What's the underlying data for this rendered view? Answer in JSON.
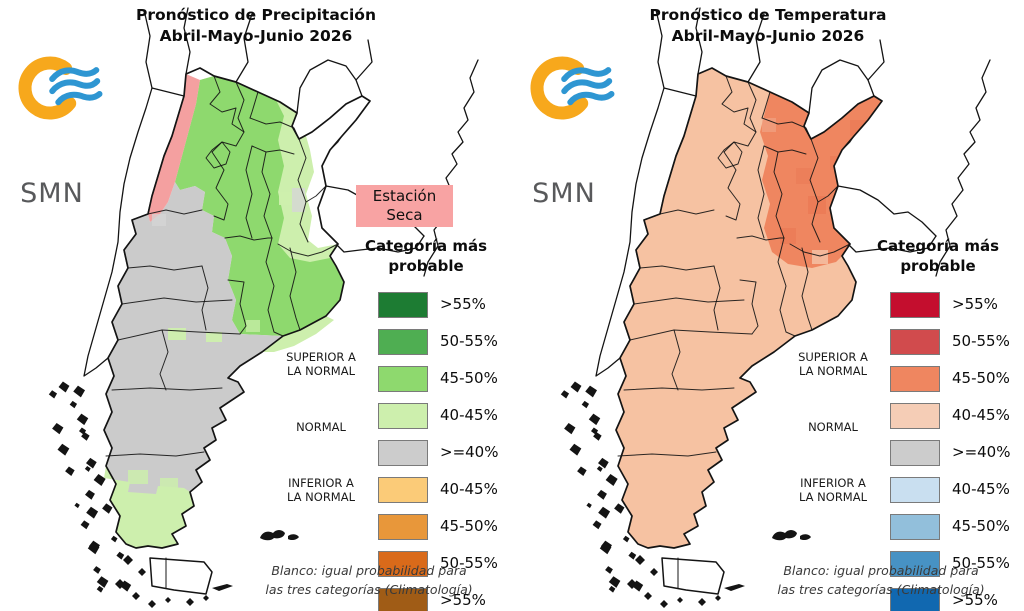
{
  "panels": [
    {
      "title_line1": "Pronóstico de Precipitación",
      "title_line2": "Abril-Mayo-Junio 2026",
      "logo_text": "SMN",
      "dry_label": {
        "line1": "Estación",
        "line2": "Seca",
        "bg": "#f8a3a3"
      },
      "legend": {
        "title_line1": "Categoría más",
        "title_line2": "probable",
        "rows": [
          {
            "range": ">55%",
            "color": "#1d7c33"
          },
          {
            "range": "50-55%",
            "color": "#4fae52"
          },
          {
            "range": "45-50%",
            "color": "#8ed96e"
          },
          {
            "range": "40-45%",
            "color": "#cdefad"
          },
          {
            "range": ">=40%",
            "color": "#cccccc"
          },
          {
            "range": "40-45%",
            "color": "#fbcb78"
          },
          {
            "range": "45-50%",
            "color": "#e8973a"
          },
          {
            "range": "50-55%",
            "color": "#d96a1a"
          },
          {
            "range": ">55%",
            "color": "#a05c16"
          }
        ]
      },
      "footnote_line1": "Blanco: igual probabilidad para",
      "footnote_line2": "las tres categorías (Climatología)",
      "map_colors": {
        "base": "#ffffff",
        "dry_band": "#f4a0a0",
        "cat_45_50": "#8ed96e",
        "cat_40_45": "#cdefad",
        "normal": "#cbcbcb"
      }
    },
    {
      "title_line1": "Pronóstico de Temperatura",
      "title_line2": "Abril-Mayo-Junio 2026",
      "logo_text": "SMN",
      "legend": {
        "title_line1": "Categoría más",
        "title_line2": "probable",
        "rows": [
          {
            "range": ">55%",
            "color": "#c40e2e"
          },
          {
            "range": "50-55%",
            "color": "#d14b4d"
          },
          {
            "range": "45-50%",
            "color": "#ef8660"
          },
          {
            "range": "40-45%",
            "color": "#f5cdb6"
          },
          {
            "range": ">=40%",
            "color": "#cccccc"
          },
          {
            "range": "40-45%",
            "color": "#c9dff0"
          },
          {
            "range": "45-50%",
            "color": "#92bfdb"
          },
          {
            "range": "50-55%",
            "color": "#4792c4"
          },
          {
            "range": ">55%",
            "color": "#1168b0"
          }
        ]
      },
      "footnote_line1": "Blanco: igual probabilidad para",
      "footnote_line2": "las tres categorías (Climatología)",
      "map_colors": {
        "base": "#f6c2a2",
        "cat_45_50": "#ef8660"
      }
    }
  ],
  "legend_groups": {
    "superior": {
      "line1": "SUPERIOR A",
      "line2": "LA NORMAL"
    },
    "normal": {
      "line1": "NORMAL"
    },
    "inferior": {
      "line1": "INFERIOR A",
      "line2": "LA NORMAL"
    }
  },
  "logo_colors": {
    "arc": "#f7a81c",
    "waves": "#2e96d2",
    "text": "#58595b"
  }
}
